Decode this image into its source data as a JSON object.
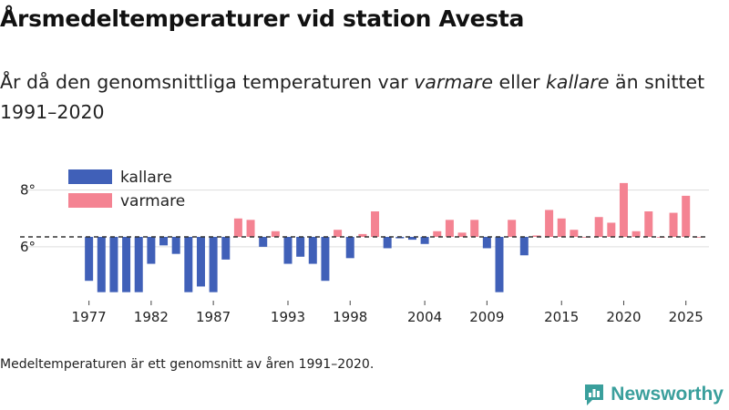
{
  "header": {
    "title": "Årsmedeltemperaturer vid station Avesta",
    "subtitle_part1": "År då den genomsnittliga temperaturen var ",
    "subtitle_warm": "varmare",
    "subtitle_part2": " eller ",
    "subtitle_cold": "kallare",
    "subtitle_part3": " än snittet 1991–2020"
  },
  "footnote": "Medeltemperaturen är ett genomsnitt av åren 1991–2020.",
  "brand": {
    "name": "Newsworthy",
    "icon": "bar-chart-logo-icon"
  },
  "colors": {
    "kallare": "#4060b8",
    "varmare": "#f48392",
    "reference": "#333333",
    "grid": "#dddddd",
    "brand": "#3a9f9c"
  },
  "chart_data": {
    "type": "bar",
    "title": "Årsmedeltemperaturer vid station Avesta",
    "baseline": 6.35,
    "baseline_label": "snittet 1991–2020",
    "ylim": [
      4.1,
      8.6
    ],
    "yticks": [
      6,
      8
    ],
    "ytick_labels": [
      "6°",
      "8°"
    ],
    "xticks": [
      1977,
      1982,
      1987,
      1993,
      1998,
      2004,
      2009,
      2015,
      2020,
      2025
    ],
    "xlim": [
      1976,
      2027
    ],
    "legend": [
      {
        "name": "kallare",
        "color": "#4060b8"
      },
      {
        "name": "varmare",
        "color": "#f48392"
      }
    ],
    "legend_position": "top-left",
    "years": [
      1977,
      1978,
      1979,
      1980,
      1981,
      1982,
      1983,
      1984,
      1985,
      1986,
      1987,
      1988,
      1989,
      1990,
      1991,
      1992,
      1993,
      1994,
      1995,
      1996,
      1997,
      1998,
      1999,
      2000,
      2001,
      2002,
      2003,
      2004,
      2005,
      2006,
      2007,
      2008,
      2009,
      2010,
      2011,
      2012,
      2013,
      2014,
      2015,
      2016,
      2017,
      2018,
      2019,
      2020,
      2021,
      2022,
      2023,
      2024,
      2025,
      2026
    ],
    "values": [
      4.8,
      4.4,
      4.4,
      4.4,
      4.4,
      5.4,
      6.05,
      5.75,
      4.4,
      4.6,
      4.4,
      5.55,
      7.0,
      6.95,
      6.0,
      6.55,
      5.4,
      5.65,
      5.4,
      4.8,
      6.6,
      5.6,
      6.45,
      7.25,
      5.95,
      6.3,
      6.25,
      6.1,
      6.55,
      6.95,
      6.5,
      6.95,
      5.95,
      4.4,
      6.95,
      5.7,
      6.4,
      7.3,
      7.0,
      6.6,
      6.35,
      7.05,
      6.85,
      8.25,
      6.55,
      7.25,
      6.35,
      7.2,
      7.8,
      6.35
    ]
  }
}
